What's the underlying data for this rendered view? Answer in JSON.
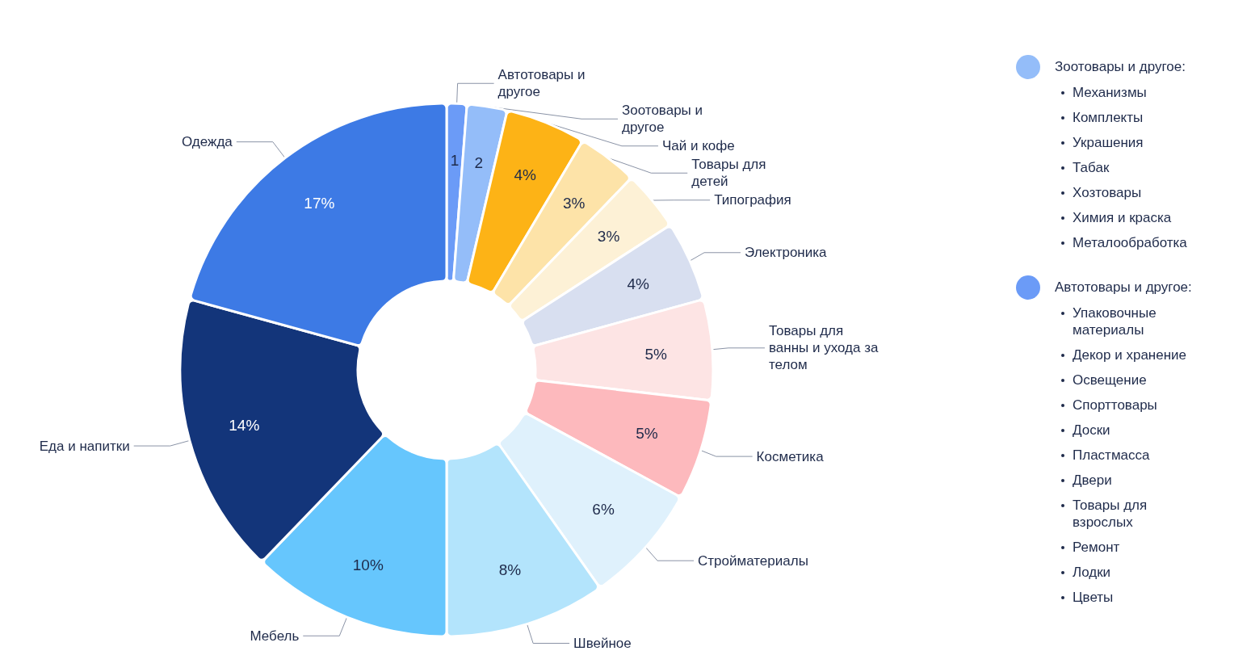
{
  "chart_data": {
    "type": "donut",
    "categories": [
      "Автотовары и другое",
      "Зоотовары и другое",
      "Чай и кофе",
      "Товары для детей",
      "Типография",
      "Электроника",
      "Товары для ванны и ухода за телом",
      "Косметика",
      "Стройматериалы",
      "Швейное",
      "Мебель",
      "Еда и напитки",
      "Одежда"
    ],
    "values": [
      1,
      2,
      4,
      3,
      3,
      4,
      5,
      5,
      6,
      8,
      10,
      14,
      17
    ],
    "value_labels": [
      "1",
      "2",
      "4%",
      "3%",
      "3%",
      "4%",
      "5%",
      "5%",
      "6%",
      "8%",
      "10%",
      "14%",
      "17%"
    ],
    "colors": [
      "#6b9bf7",
      "#94bdf9",
      "#fdb316",
      "#fde3a8",
      "#fdf1d6",
      "#d8dff0",
      "#fde4e4",
      "#fdb9bd",
      "#dff1fc",
      "#b3e4fc",
      "#66c6fd",
      "#13357a",
      "#3d7ae5"
    ],
    "annotations": [
      "Зоотовары и другое:",
      "Механизмы",
      "Комплекты",
      "Украшения",
      "Табак",
      "Хозтовары",
      "Химия и краска",
      "Металообработка",
      "Автотовары и другое:",
      "Упаковочные материалы",
      "Декор и хранение",
      "Освещение",
      "Спорттовары",
      "Доски",
      "Пластмасса",
      "Двери",
      "Товары для взрослых",
      "Ремонт",
      "Лодки",
      "Цветы"
    ]
  }
}
